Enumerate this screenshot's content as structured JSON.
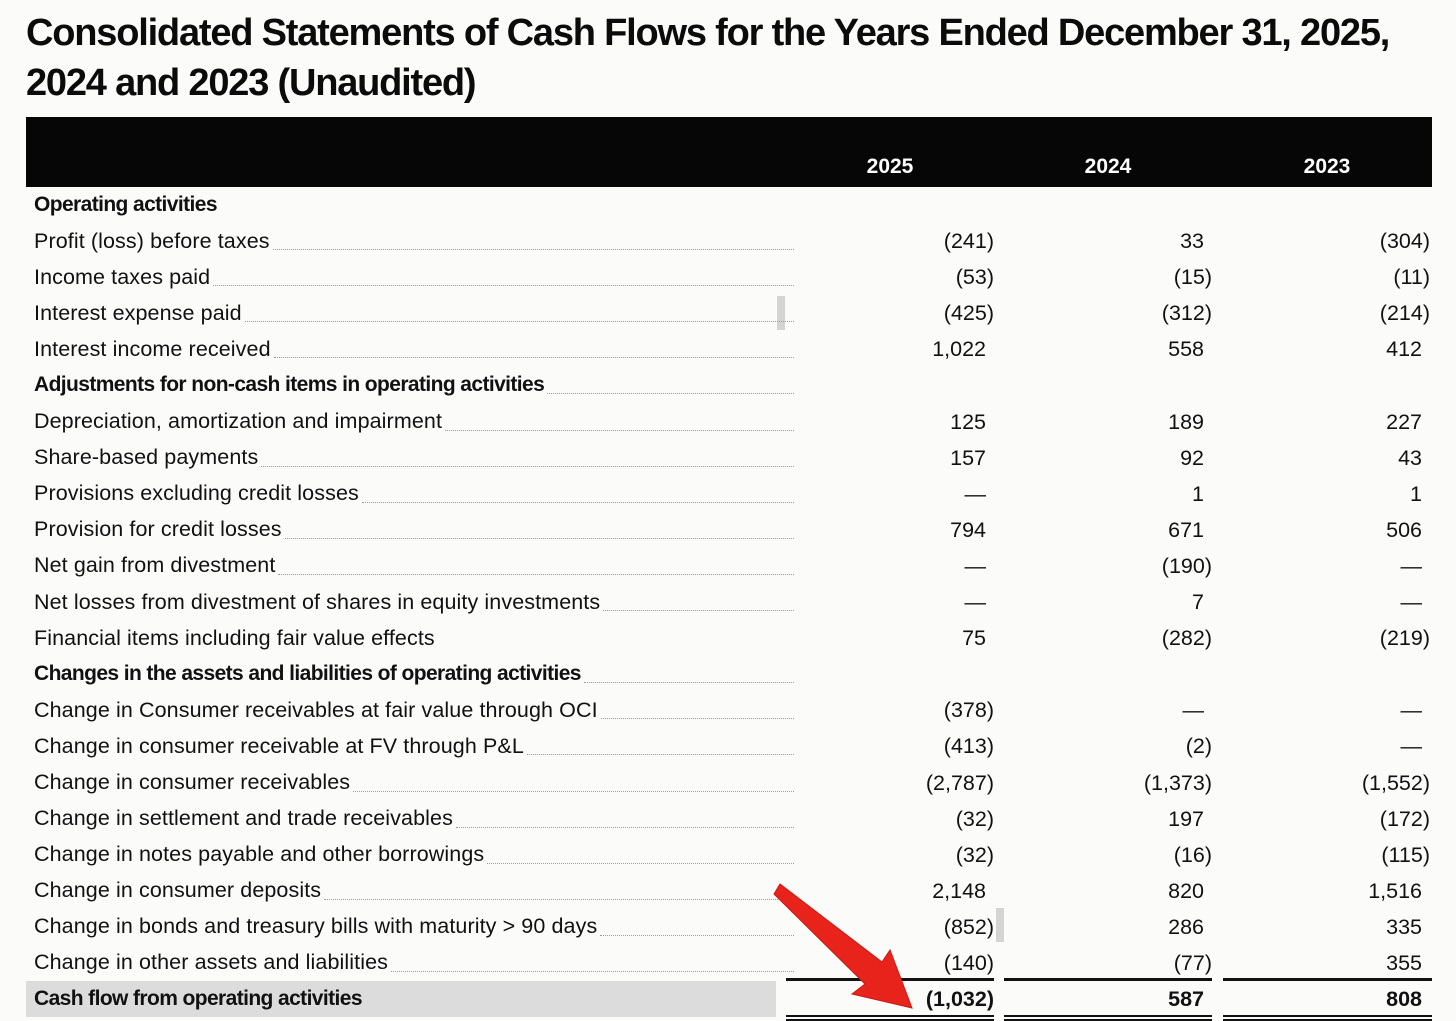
{
  "title": "Consolidated Statements of Cash Flows for the Years Ended December 31, 2025, 2024 and 2023 (Unaudited)",
  "columns": [
    "2025",
    "2024",
    "2023"
  ],
  "rows": [
    {
      "label": "Operating activities",
      "type": "header",
      "leader": false,
      "values": [
        "",
        "",
        ""
      ]
    },
    {
      "label": "Profit (loss) before taxes",
      "type": "item",
      "values": [
        "(241)",
        "33",
        "(304)"
      ]
    },
    {
      "label": "Income taxes paid",
      "type": "item",
      "values": [
        "(53)",
        "(15)",
        "(11)"
      ]
    },
    {
      "label": "Interest expense paid",
      "type": "item",
      "values": [
        "(425)",
        "(312)",
        "(214)"
      ]
    },
    {
      "label": "Interest income received",
      "type": "item",
      "values": [
        "1,022",
        "558",
        "412"
      ]
    },
    {
      "label": "Adjustments for non-cash items in operating activities",
      "type": "header",
      "values": [
        "",
        "",
        ""
      ]
    },
    {
      "label": "Depreciation, amortization and impairment",
      "type": "item",
      "values": [
        "125",
        "189",
        "227"
      ]
    },
    {
      "label": "Share-based payments",
      "type": "item",
      "values": [
        "157",
        "92",
        "43"
      ]
    },
    {
      "label": "Provisions excluding credit losses",
      "type": "item",
      "values": [
        "—",
        "1",
        "1"
      ]
    },
    {
      "label": "Provision for credit losses",
      "type": "item",
      "values": [
        "794",
        "671",
        "506"
      ]
    },
    {
      "label": "Net gain from divestment",
      "type": "item",
      "values": [
        "—",
        "(190)",
        "—"
      ]
    },
    {
      "label": "Net losses from divestment of shares in equity investments",
      "type": "item",
      "values": [
        "—",
        "7",
        "—"
      ]
    },
    {
      "label": "Financial items including fair value effects",
      "type": "item",
      "leader": false,
      "values": [
        "75",
        "(282)",
        "(219)"
      ]
    },
    {
      "label": "Changes in the assets and liabilities of operating activities",
      "type": "header",
      "values": [
        "",
        "",
        ""
      ]
    },
    {
      "label": "Change in Consumer receivables at fair value through OCI",
      "type": "item",
      "values": [
        "(378)",
        "—",
        "—"
      ]
    },
    {
      "label": "Change in consumer receivable at FV through P&L",
      "type": "item",
      "values": [
        "(413)",
        "(2)",
        "—"
      ]
    },
    {
      "label": "Change in consumer receivables",
      "type": "item",
      "values": [
        "(2,787)",
        "(1,373)",
        "(1,552)"
      ]
    },
    {
      "label": "Change in settlement and trade receivables",
      "type": "item",
      "values": [
        "(32)",
        "197",
        "(172)"
      ]
    },
    {
      "label": "Change in notes payable and other borrowings",
      "type": "item",
      "values": [
        "(32)",
        "(16)",
        "(115)"
      ]
    },
    {
      "label": "Change in consumer deposits",
      "type": "item",
      "values": [
        "2,148",
        "820",
        "1,516"
      ]
    },
    {
      "label": "Change in bonds and treasury bills with maturity > 90 days",
      "type": "item",
      "values": [
        "(852)",
        "286",
        "335"
      ]
    },
    {
      "label": "Change in other assets and liabilities",
      "type": "item",
      "values": [
        "(140)",
        "(77)",
        "355"
      ]
    },
    {
      "label": "Cash flow from operating activities",
      "type": "total",
      "leader": false,
      "values": [
        "(1,032)",
        "587",
        "808"
      ]
    }
  ],
  "annotation": {
    "icon": "arrow-icon",
    "color": "#e8231c"
  }
}
